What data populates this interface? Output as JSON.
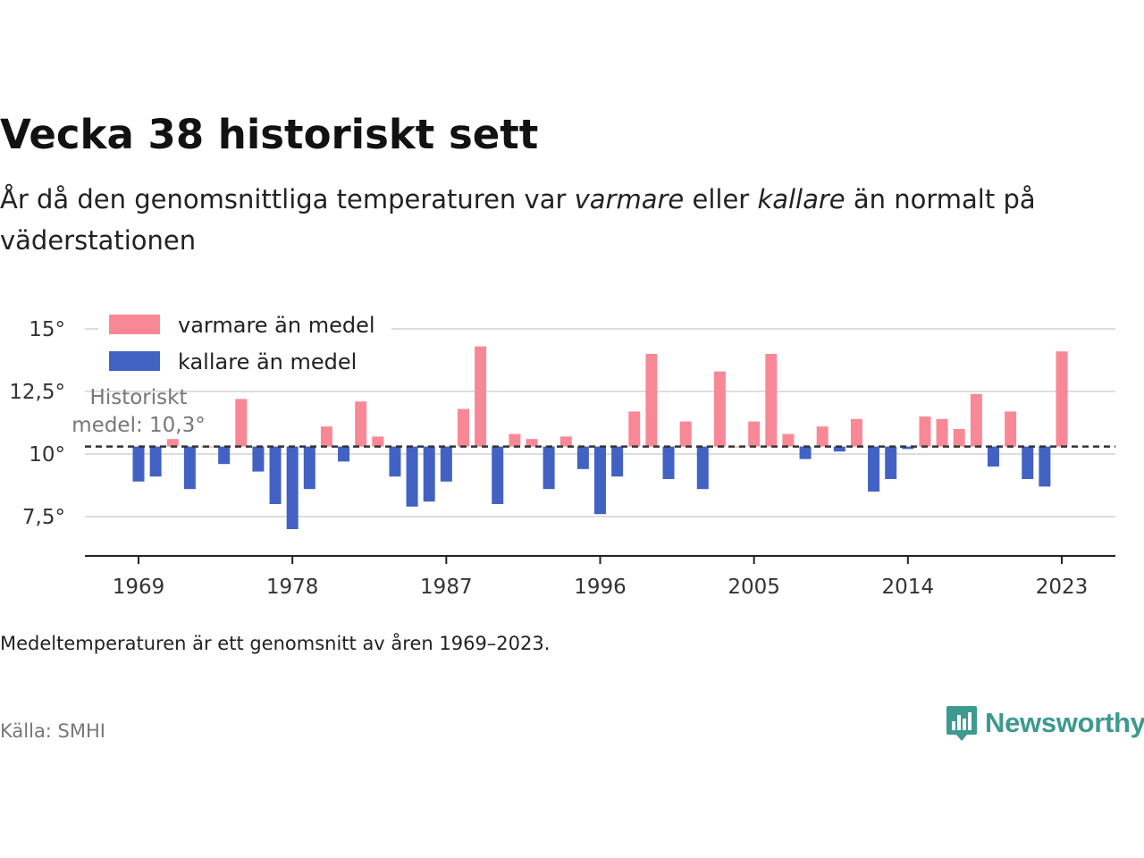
{
  "title": "Vecka 38 historiskt sett",
  "subtitle": {
    "part1": "År då den genomsnittliga temperaturen var ",
    "warm_word": "varmare",
    "part2": " eller ",
    "cold_word": "kallare",
    "part3": " än normalt på väderstationen"
  },
  "note": "Medeltemperaturen är ett genomsnitt av åren 1969–2023.",
  "source": "Källa: SMHI",
  "brand": {
    "name": "Newsworthy",
    "icon": "bar-chart-speech-bubble-icon"
  },
  "colors": {
    "warm": "#f98896",
    "cold": "#4262c3",
    "brand": "#3c9a8f",
    "reference": "#333333",
    "grid": "#dddddd"
  },
  "chart_data": {
    "type": "bar",
    "baseline": 10.3,
    "reference_label_lines": [
      "Historiskt",
      "medel: 10,3°"
    ],
    "ylim": [
      6,
      15.5
    ],
    "yticks": [
      7.5,
      10,
      12.5,
      15
    ],
    "ytick_labels": [
      "7,5°",
      "10°",
      "12,5°",
      "15°"
    ],
    "xticks": [
      1969,
      1978,
      1987,
      1996,
      2005,
      2014,
      2023
    ],
    "xtick_labels": [
      "1969",
      "1978",
      "1987",
      "1996",
      "2005",
      "2014",
      "2023"
    ],
    "legend": {
      "position": "top-left",
      "items": [
        {
          "label": "varmare än medel",
          "color": "#f98896"
        },
        {
          "label": "kallare än medel",
          "color": "#4262c3"
        }
      ]
    },
    "x": [
      1969,
      1970,
      1971,
      1972,
      1973,
      1974,
      1975,
      1976,
      1977,
      1978,
      1979,
      1980,
      1981,
      1982,
      1983,
      1984,
      1985,
      1986,
      1987,
      1988,
      1989,
      1990,
      1991,
      1992,
      1993,
      1994,
      1995,
      1996,
      1997,
      1998,
      1999,
      2000,
      2001,
      2002,
      2003,
      2004,
      2005,
      2006,
      2007,
      2008,
      2009,
      2010,
      2011,
      2012,
      2013,
      2014,
      2015,
      2016,
      2017,
      2018,
      2019,
      2020,
      2021,
      2022,
      2023
    ],
    "values": [
      8.9,
      9.1,
      10.6,
      8.6,
      10.3,
      9.6,
      12.2,
      9.3,
      8.0,
      7.0,
      8.6,
      11.1,
      9.7,
      12.1,
      10.7,
      9.1,
      7.9,
      8.1,
      8.9,
      11.8,
      14.3,
      8.0,
      10.8,
      10.6,
      8.6,
      10.7,
      9.4,
      7.6,
      9.1,
      11.7,
      14.0,
      9.0,
      11.3,
      8.6,
      13.3,
      10.3,
      11.3,
      14.0,
      10.8,
      9.8,
      11.1,
      10.1,
      11.4,
      8.5,
      9.0,
      10.2,
      11.5,
      11.4,
      11.0,
      12.4,
      9.5,
      11.7,
      9.0,
      8.7,
      14.1
    ]
  }
}
